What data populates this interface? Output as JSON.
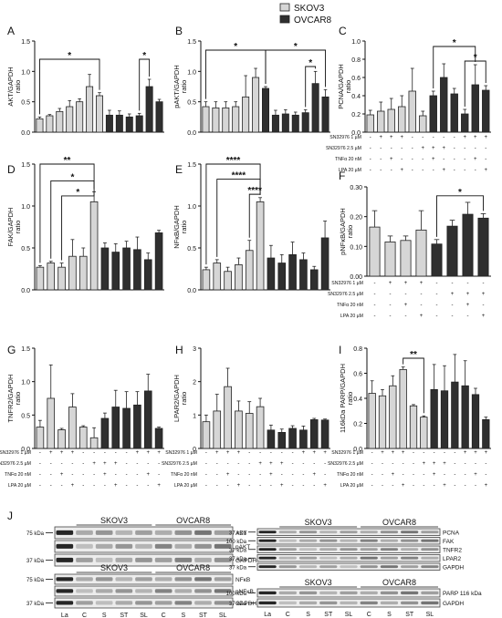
{
  "legend": {
    "items": [
      {
        "label": "SKOV3",
        "color": "#d6d6d6"
      },
      {
        "label": "OVCAR8",
        "color": "#2f2f2f"
      }
    ]
  },
  "treatments": {
    "rows": [
      "SN32976 1 µM",
      "SN32976 2.5 µM",
      "TNFα 20 nM",
      "LPA 20 µM"
    ],
    "pattern": [
      [
        "-",
        "+",
        "+",
        "+",
        "-",
        "-",
        "-",
        "-"
      ],
      [
        "-",
        "-",
        "-",
        "-",
        "-",
        "+",
        "+",
        "+"
      ],
      [
        "-",
        "-",
        "+",
        "-",
        "-",
        "-",
        "+",
        "-"
      ],
      [
        "-",
        "-",
        "-",
        "+",
        "-",
        "-",
        "-",
        "+"
      ]
    ]
  },
  "chart_data": [
    {
      "panel": "A",
      "type": "bar",
      "ylabel": "AKT/GAPDH",
      "ylim": [
        0,
        1.5
      ],
      "ticks": [
        0,
        0.5,
        1.0,
        1.5
      ],
      "tick_labels": [
        "0.0",
        "0.5",
        "1.0",
        "1.5"
      ],
      "values": [
        0.22,
        0.27,
        0.34,
        0.42,
        0.5,
        0.75,
        0.6,
        0.28,
        0.28,
        0.25,
        0.27,
        0.75,
        0.5
      ],
      "errors": [
        0.03,
        0.02,
        0.05,
        0.1,
        0.05,
        0.2,
        0.05,
        0.08,
        0.07,
        0.05,
        0.04,
        0.12,
        0.04
      ],
      "colors": [
        "light",
        "light",
        "light",
        "light",
        "light",
        "light",
        "light",
        "dark",
        "dark",
        "dark",
        "dark",
        "dark",
        "dark"
      ],
      "sig": [
        {
          "a": 0,
          "b": 6,
          "label": "*",
          "y": 1.2
        },
        {
          "a": 10,
          "b": 11,
          "label": "*",
          "y": 1.2
        }
      ]
    },
    {
      "panel": "B",
      "type": "bar",
      "ylabel": "pAKT/GAPDH",
      "ylim": [
        0,
        1.5
      ],
      "ticks": [
        0,
        0.5,
        1.0,
        1.5
      ],
      "tick_labels": [
        "0.0",
        "0.5",
        "1.0",
        "1.5"
      ],
      "values": [
        0.42,
        0.4,
        0.4,
        0.42,
        0.58,
        0.9,
        0.72,
        0.28,
        0.3,
        0.28,
        0.32,
        0.8,
        0.58
      ],
      "errors": [
        0.08,
        0.1,
        0.1,
        0.08,
        0.35,
        0.15,
        0.03,
        0.08,
        0.07,
        0.05,
        0.05,
        0.2,
        0.12
      ],
      "colors": [
        "light",
        "light",
        "light",
        "light",
        "light",
        "light",
        "dark",
        "dark",
        "dark",
        "dark",
        "dark",
        "dark",
        "dark"
      ],
      "sig": [
        {
          "a": 0,
          "b": 6,
          "label": "*",
          "y": 1.35
        },
        {
          "a": 6,
          "b": 12,
          "label": "*",
          "y": 1.35
        },
        {
          "a": 10,
          "b": 11,
          "label": "*",
          "y": 1.08
        }
      ]
    },
    {
      "panel": "C",
      "type": "bar",
      "ylabel": "PCNA/GAPDH",
      "ylim": [
        0,
        1.0
      ],
      "ticks": [
        0,
        0.2,
        0.4,
        0.6,
        0.8,
        1.0
      ],
      "tick_labels": [
        "0.0",
        "0.2",
        "0.4",
        "0.6",
        "0.8",
        "1.0"
      ],
      "values": [
        0.19,
        0.23,
        0.25,
        0.28,
        0.45,
        0.18,
        0.4,
        0.6,
        0.42,
        0.2,
        0.52,
        0.46
      ],
      "errors": [
        0.05,
        0.1,
        0.12,
        0.12,
        0.25,
        0.05,
        0.05,
        0.15,
        0.06,
        0.05,
        0.22,
        0.05
      ],
      "colors": [
        "light",
        "light",
        "light",
        "light",
        "light",
        "light",
        "dark",
        "dark",
        "dark",
        "dark",
        "dark",
        "dark"
      ],
      "sig": [
        {
          "a": 6,
          "b": 10,
          "label": "*",
          "y": 0.94
        },
        {
          "a": 9,
          "b": 11,
          "label": "*",
          "y": 0.78
        }
      ]
    },
    {
      "panel": "D",
      "type": "bar",
      "ylabel": "FAK/GAPDH",
      "ylim": [
        0,
        1.5
      ],
      "ticks": [
        0,
        0.5,
        1.0,
        1.5
      ],
      "tick_labels": [
        "0.0",
        "0.5",
        "1.0",
        "1.5"
      ],
      "values": [
        0.27,
        0.32,
        0.27,
        0.4,
        0.4,
        1.05,
        0.5,
        0.45,
        0.5,
        0.48,
        0.36,
        0.68
      ],
      "errors": [
        0.02,
        0.02,
        0.05,
        0.2,
        0.1,
        0.12,
        0.06,
        0.1,
        0.08,
        0.15,
        0.08,
        0.03
      ],
      "colors": [
        "light",
        "light",
        "light",
        "light",
        "light",
        "light",
        "dark",
        "dark",
        "dark",
        "dark",
        "dark",
        "dark"
      ],
      "sig": [
        {
          "a": 0,
          "b": 5,
          "label": "**",
          "y": 1.5
        },
        {
          "a": 1,
          "b": 5,
          "label": "*",
          "y": 1.3
        },
        {
          "a": 2,
          "b": 5,
          "label": "*",
          "y": 1.12
        }
      ]
    },
    {
      "panel": "E",
      "type": "bar",
      "ylabel": "NFκB/GAPDH",
      "ylim": [
        0,
        1.5
      ],
      "ticks": [
        0,
        0.5,
        1.0,
        1.5
      ],
      "tick_labels": [
        "0.0",
        "0.5",
        "1.0",
        "1.5"
      ],
      "values": [
        0.24,
        0.32,
        0.22,
        0.3,
        0.47,
        1.05,
        0.38,
        0.32,
        0.42,
        0.36,
        0.24,
        0.62
      ],
      "errors": [
        0.03,
        0.04,
        0.05,
        0.08,
        0.12,
        0.05,
        0.15,
        0.1,
        0.15,
        0.08,
        0.04,
        0.2
      ],
      "colors": [
        "light",
        "light",
        "light",
        "light",
        "light",
        "light",
        "dark",
        "dark",
        "dark",
        "dark",
        "dark",
        "dark"
      ],
      "sig": [
        {
          "a": 0,
          "b": 5,
          "label": "****",
          "y": 1.5
        },
        {
          "a": 1,
          "b": 5,
          "label": "****",
          "y": 1.32
        },
        {
          "a": 4,
          "b": 5,
          "label": "****",
          "y": 1.14
        }
      ]
    },
    {
      "panel": "F",
      "type": "bar",
      "ylabel": "pNFκB/GAPDH",
      "ylim": [
        0,
        0.3
      ],
      "ticks": [
        0,
        0.1,
        0.2,
        0.3
      ],
      "tick_labels": [
        "0.00",
        "0.10",
        "0.20",
        "0.30"
      ],
      "values": [
        0.165,
        0.115,
        0.12,
        0.155,
        0.108,
        0.168,
        0.208,
        0.195
      ],
      "errors": [
        0.055,
        0.02,
        0.015,
        0.065,
        0.015,
        0.02,
        0.04,
        0.015
      ],
      "colors": [
        "light",
        "light",
        "light",
        "light",
        "dark",
        "dark",
        "dark",
        "dark"
      ],
      "sig": [
        {
          "a": 4,
          "b": 7,
          "label": "*",
          "y": 0.27
        }
      ]
    },
    {
      "panel": "G",
      "type": "bar",
      "ylabel": "TNFR2/GAPDH",
      "ylim": [
        0,
        1.5
      ],
      "ticks": [
        0,
        0.5,
        1.0,
        1.5
      ],
      "tick_labels": [
        "0.0",
        "0.5",
        "1.0",
        "1.5"
      ],
      "values": [
        0.32,
        0.75,
        0.28,
        0.62,
        0.32,
        0.16,
        0.45,
        0.62,
        0.6,
        0.65,
        0.86,
        0.3
      ],
      "errors": [
        0.1,
        0.5,
        0.02,
        0.2,
        0.02,
        0.15,
        0.08,
        0.25,
        0.25,
        0.2,
        0.25,
        0.02
      ],
      "colors": [
        "light",
        "light",
        "light",
        "light",
        "light",
        "light",
        "dark",
        "dark",
        "dark",
        "dark",
        "dark",
        "dark"
      ],
      "sig": []
    },
    {
      "panel": "H",
      "type": "bar",
      "ylabel": "LPAR2/GAPDH",
      "ylim": [
        0,
        3
      ],
      "ticks": [
        0,
        1,
        2,
        3
      ],
      "tick_labels": [
        "0",
        "1",
        "2",
        "3"
      ],
      "values": [
        0.8,
        1.12,
        1.85,
        1.12,
        1.05,
        1.25,
        0.55,
        0.48,
        0.6,
        0.55,
        0.86,
        0.85
      ],
      "errors": [
        0.2,
        0.5,
        0.55,
        0.3,
        0.35,
        0.25,
        0.15,
        0.1,
        0.08,
        0.12,
        0.04,
        0.03
      ],
      "colors": [
        "light",
        "light",
        "light",
        "light",
        "light",
        "light",
        "dark",
        "dark",
        "dark",
        "dark",
        "dark",
        "dark"
      ],
      "sig": []
    },
    {
      "panel": "I",
      "type": "bar",
      "ylabel": "116kDa PARP/GAPDH",
      "ylim": [
        0,
        0.8
      ],
      "ticks": [
        0,
        0.2,
        0.4,
        0.6,
        0.8
      ],
      "tick_labels": [
        "0.0",
        "0.2",
        "0.4",
        "0.6",
        "0.8"
      ],
      "values": [
        0.44,
        0.42,
        0.5,
        0.63,
        0.34,
        0.25,
        0.47,
        0.46,
        0.53,
        0.5,
        0.43,
        0.23
      ],
      "errors": [
        0.1,
        0.05,
        0.08,
        0.02,
        0.01,
        0.01,
        0.2,
        0.2,
        0.22,
        0.2,
        0.05,
        0.02
      ],
      "colors": [
        "light",
        "light",
        "light",
        "light",
        "light",
        "light",
        "dark",
        "dark",
        "dark",
        "dark",
        "dark",
        "dark"
      ],
      "sig": [
        {
          "a": 3,
          "b": 5,
          "label": "**",
          "y": 0.72
        }
      ]
    }
  ],
  "blots": {
    "label": "J",
    "cell_line_left": "SKOV3",
    "cell_line_right": "OVCAR8",
    "lanes": [
      "La",
      "C",
      "S",
      "ST",
      "SL",
      "C",
      "S",
      "ST",
      "SL"
    ],
    "groups": [
      {
        "kda": [
          "75 kDa",
          "",
          "37 kDa"
        ],
        "proteins": [
          "AKT",
          "pAKT",
          "GAPDH"
        ],
        "has_header": true
      },
      {
        "kda": [
          "75 kDa",
          "",
          "37 kDa"
        ],
        "proteins": [
          "NFκB",
          "pNFκB",
          "GAPDH"
        ],
        "has_header": true
      },
      {
        "kda": [
          "37 kDa",
          "100 kDa",
          "37 kDa",
          "37 kDa",
          "37 kDa"
        ],
        "proteins": [
          "PCNA",
          "FAK",
          "TNFR2",
          "LPAR2",
          "GAPDH"
        ],
        "has_header": true
      },
      {
        "kda": [
          "100 kDa",
          "37 kDa"
        ],
        "proteins": [
          "PARP 116 kDa",
          "GAPDH"
        ],
        "has_header": true
      }
    ]
  }
}
